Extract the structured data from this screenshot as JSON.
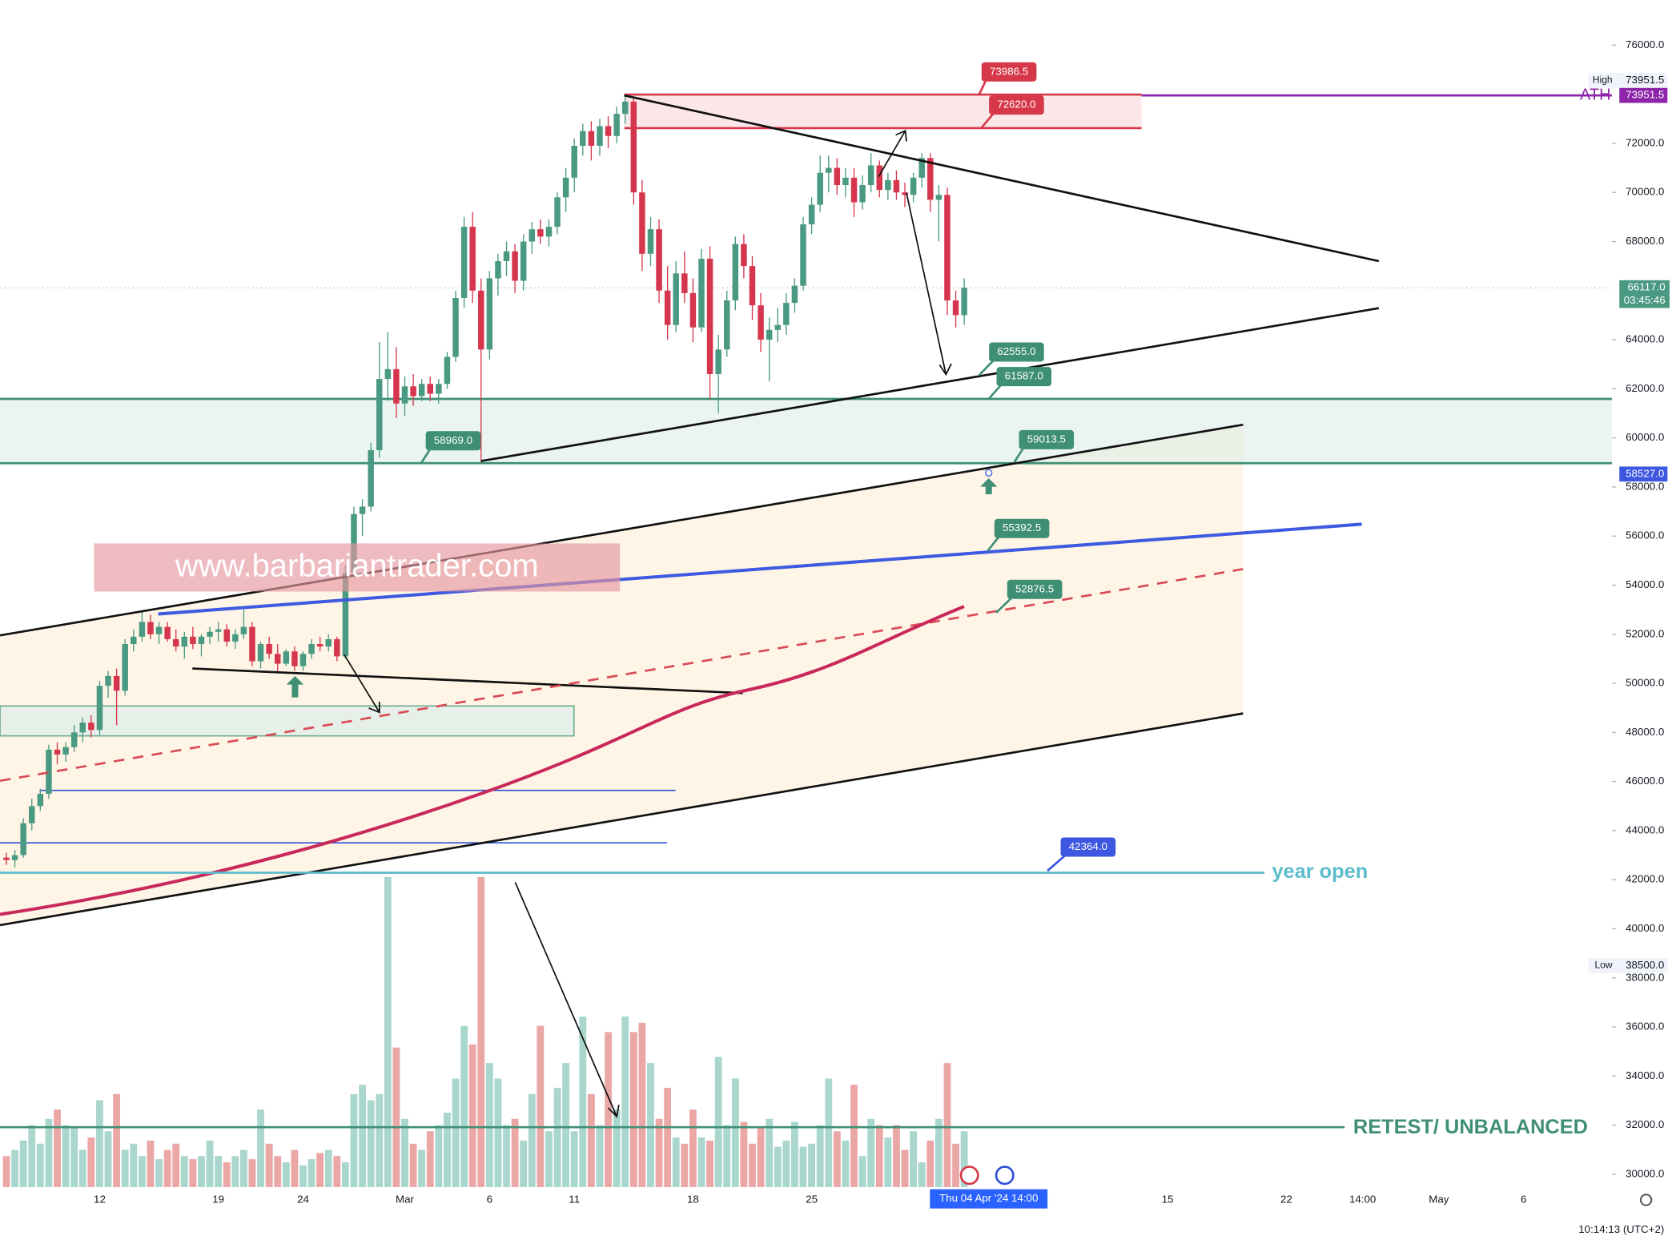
{
  "chart_data": {
    "type": "candlestick",
    "watermark": "www.barbariantrader.com",
    "up_color": "#4a9982",
    "down_color": "#d6364d",
    "volume_up_color": "#a9d6cd",
    "volume_down_color": "#eba6a6",
    "categories": [
      null,
      null,
      null,
      null,
      null,
      null,
      null,
      null,
      null,
      null,
      null,
      "12",
      null,
      null,
      null,
      null,
      null,
      null,
      null,
      null,
      null,
      null,
      null,
      null,
      null,
      "19",
      null,
      null,
      null,
      null,
      null,
      null,
      null,
      null,
      null,
      "24",
      null,
      null,
      null,
      null,
      null,
      null,
      null,
      null,
      null,
      null,
      null,
      "Mar",
      null,
      null,
      null,
      null,
      null,
      null,
      null,
      null,
      null,
      "6",
      null,
      null,
      null,
      null,
      null,
      null,
      null,
      null,
      null,
      "11",
      null,
      null,
      null,
      null,
      null,
      null,
      null,
      null,
      null,
      null,
      null,
      null,
      null,
      "18",
      null,
      null,
      null,
      null,
      null,
      null,
      null,
      null,
      null,
      null,
      null,
      null,
      null,
      "25",
      null,
      null,
      null,
      null,
      null,
      null,
      null,
      null,
      null,
      null,
      null,
      null,
      null,
      null,
      null,
      null,
      null,
      null,
      null,
      null,
      null,
      null,
      null,
      null,
      null,
      null,
      null,
      null,
      null,
      null,
      null,
      null,
      null,
      null,
      null,
      null,
      null,
      null,
      null,
      null,
      null,
      "15",
      null,
      null,
      null,
      null,
      null,
      null,
      null,
      null,
      null,
      null,
      null,
      null,
      null,
      "22",
      null,
      null,
      null,
      null,
      null,
      null,
      null,
      null,
      "14:00",
      null,
      null,
      null,
      null,
      null,
      null,
      null,
      null,
      "May",
      null,
      null,
      null,
      null,
      null,
      null,
      null,
      null,
      null,
      "6"
    ],
    "candles": [
      [
        42900,
        43100,
        42600,
        42800
      ],
      [
        42800,
        43200,
        42500,
        43000
      ],
      [
        43000,
        44500,
        42900,
        44300
      ],
      [
        44300,
        45300,
        44000,
        45000
      ],
      [
        45000,
        45700,
        44800,
        45500
      ],
      [
        45500,
        47500,
        45300,
        47300
      ],
      [
        47300,
        47600,
        46700,
        47100
      ],
      [
        47100,
        47600,
        46800,
        47400
      ],
      [
        47400,
        48300,
        47200,
        48000
      ],
      [
        48000,
        48600,
        47600,
        48400
      ],
      [
        48400,
        48700,
        47800,
        48100
      ],
      [
        48100,
        50100,
        47900,
        49900
      ],
      [
        49900,
        50500,
        49400,
        50300
      ],
      [
        50300,
        50600,
        48300,
        49700
      ],
      [
        49700,
        51800,
        49500,
        51600
      ],
      [
        51600,
        52200,
        51300,
        51900
      ],
      [
        51900,
        52900,
        51700,
        52500
      ],
      [
        52500,
        52800,
        51800,
        52000
      ],
      [
        52000,
        52500,
        51600,
        52300
      ],
      [
        52300,
        52500,
        51700,
        51800
      ],
      [
        51800,
        52200,
        51300,
        51500
      ],
      [
        51500,
        52100,
        51000,
        51900
      ],
      [
        51900,
        52300,
        51400,
        51600
      ],
      [
        51600,
        52000,
        51100,
        51900
      ],
      [
        51900,
        52300,
        51600,
        52100
      ],
      [
        52100,
        52500,
        51700,
        52200
      ],
      [
        52200,
        52400,
        51500,
        51700
      ],
      [
        51700,
        52200,
        51400,
        52000
      ],
      [
        52000,
        53000,
        51800,
        52300
      ],
      [
        52300,
        52500,
        50700,
        50900
      ],
      [
        50900,
        51700,
        50600,
        51600
      ],
      [
        51600,
        51900,
        51000,
        51200
      ],
      [
        51200,
        51600,
        50500,
        50800
      ],
      [
        50800,
        51400,
        50700,
        51300
      ],
      [
        51300,
        51500,
        50500,
        50700
      ],
      [
        50700,
        51300,
        50500,
        51200
      ],
      [
        51200,
        51800,
        51000,
        51600
      ],
      [
        51600,
        51900,
        51300,
        51500
      ],
      [
        51500,
        52000,
        51300,
        51800
      ],
      [
        51800,
        51900,
        50900,
        51100
      ],
      [
        51100,
        54800,
        51000,
        54500
      ],
      [
        54500,
        57200,
        54300,
        56900
      ],
      [
        56900,
        57500,
        56000,
        57200
      ],
      [
        57200,
        59800,
        57000,
        59500
      ],
      [
        59500,
        63900,
        59200,
        62400
      ],
      [
        62400,
        64300,
        61500,
        62800
      ],
      [
        62800,
        63700,
        60800,
        61400
      ],
      [
        61400,
        62500,
        60900,
        62100
      ],
      [
        62100,
        62600,
        61300,
        61700
      ],
      [
        61700,
        62400,
        61500,
        62200
      ],
      [
        62200,
        62500,
        61500,
        61800
      ],
      [
        61800,
        62400,
        61400,
        62200
      ],
      [
        62200,
        63500,
        62000,
        63300
      ],
      [
        63300,
        66000,
        63100,
        65700
      ],
      [
        65700,
        69000,
        65300,
        68600
      ],
      [
        68600,
        69200,
        65500,
        66000
      ],
      [
        66000,
        66500,
        59000,
        63600
      ],
      [
        63600,
        66800,
        63200,
        66500
      ],
      [
        66500,
        67500,
        65800,
        67200
      ],
      [
        67200,
        68000,
        66600,
        67600
      ],
      [
        67600,
        67900,
        65900,
        66400
      ],
      [
        66400,
        68300,
        66000,
        68000
      ],
      [
        68000,
        68800,
        67500,
        68500
      ],
      [
        68500,
        68900,
        67900,
        68200
      ],
      [
        68200,
        68900,
        67800,
        68600
      ],
      [
        68600,
        70000,
        68300,
        69800
      ],
      [
        69800,
        71000,
        69200,
        70600
      ],
      [
        70600,
        72200,
        70000,
        71900
      ],
      [
        71900,
        72800,
        71500,
        72500
      ],
      [
        72500,
        72900,
        71300,
        71900
      ],
      [
        71900,
        73000,
        71500,
        72700
      ],
      [
        72700,
        73100,
        71800,
        72300
      ],
      [
        72300,
        73500,
        72000,
        73200
      ],
      [
        73200,
        73950,
        72800,
        73700
      ],
      [
        73700,
        73900,
        69500,
        70000
      ],
      [
        70000,
        70500,
        66800,
        67500
      ],
      [
        67500,
        69000,
        67000,
        68500
      ],
      [
        68500,
        68900,
        65500,
        66000
      ],
      [
        66000,
        67000,
        64000,
        64600
      ],
      [
        64600,
        67200,
        64300,
        66700
      ],
      [
        66700,
        67600,
        65500,
        65900
      ],
      [
        65900,
        66500,
        63900,
        64500
      ],
      [
        64500,
        67700,
        64300,
        67300
      ],
      [
        67300,
        67800,
        61600,
        62600
      ],
      [
        62600,
        64200,
        61000,
        63600
      ],
      [
        63600,
        66000,
        63300,
        65600
      ],
      [
        65600,
        68200,
        65200,
        67900
      ],
      [
        67900,
        68300,
        66500,
        67000
      ],
      [
        67000,
        67400,
        64800,
        65400
      ],
      [
        65400,
        65900,
        63500,
        64000
      ],
      [
        64000,
        64900,
        62300,
        64400
      ],
      [
        64400,
        65300,
        63900,
        64600
      ],
      [
        64600,
        65900,
        64200,
        65500
      ],
      [
        65500,
        66500,
        65100,
        66200
      ],
      [
        66200,
        69000,
        66000,
        68700
      ],
      [
        68700,
        69800,
        68300,
        69500
      ],
      [
        69500,
        71500,
        69200,
        70800
      ],
      [
        70800,
        71500,
        70000,
        71000
      ],
      [
        71000,
        71400,
        69900,
        70300
      ],
      [
        70300,
        71000,
        69800,
        70600
      ],
      [
        70600,
        71000,
        69000,
        69600
      ],
      [
        69600,
        70700,
        69300,
        70300
      ],
      [
        70300,
        71600,
        70000,
        71100
      ],
      [
        71100,
        71300,
        69800,
        70100
      ],
      [
        70100,
        70800,
        69700,
        70500
      ],
      [
        70500,
        70900,
        69700,
        70000
      ],
      [
        70000,
        70400,
        69400,
        69900
      ],
      [
        69900,
        70800,
        69600,
        70600
      ],
      [
        70600,
        71600,
        70200,
        71400
      ],
      [
        71400,
        71600,
        69200,
        69700
      ],
      [
        69700,
        70300,
        68000,
        69900
      ],
      [
        69900,
        70200,
        65000,
        65600
      ],
      [
        65600,
        66000,
        64500,
        65000
      ],
      [
        65000,
        66500,
        64600,
        66117
      ],
      null,
      null,
      null,
      null,
      null,
      null,
      null,
      null,
      null,
      null,
      null,
      null,
      null,
      null,
      null,
      null,
      null,
      null,
      null,
      null,
      null,
      null,
      null,
      null,
      null,
      null,
      null,
      null,
      null,
      null,
      null,
      null,
      null,
      null,
      null,
      null,
      null,
      null,
      null,
      null,
      null,
      null,
      null,
      null,
      null,
      null,
      null,
      null,
      null,
      null,
      null,
      null,
      null,
      null,
      null,
      null,
      null,
      null,
      null,
      null,
      null,
      null,
      null,
      null,
      null,
      null
    ],
    "volume": [
      10,
      12,
      15,
      20,
      14,
      22,
      25,
      20,
      19,
      12,
      16,
      28,
      18,
      30,
      12,
      14,
      10,
      15,
      9,
      12,
      14,
      10,
      9,
      10,
      15,
      10,
      8,
      10,
      12,
      9,
      25,
      14,
      10,
      8,
      12,
      7,
      9,
      11,
      12,
      10,
      8,
      30,
      33,
      28,
      30,
      100,
      45,
      22,
      14,
      12,
      18,
      20,
      24,
      35,
      52,
      46,
      100,
      40,
      35,
      20,
      22,
      15,
      30,
      52,
      18,
      32,
      40,
      18,
      55,
      30,
      20,
      50,
      25,
      55,
      50,
      53,
      40,
      22,
      32,
      16,
      14,
      25,
      16,
      15,
      42,
      20,
      35,
      21,
      14,
      19,
      22,
      13,
      15,
      21,
      13,
      14,
      20,
      35,
      18,
      15,
      33,
      10,
      22,
      20,
      16,
      20,
      12,
      18,
      8,
      15,
      22,
      40,
      14,
      18,
      null,
      null,
      null,
      null,
      null,
      null,
      null,
      null,
      null,
      null,
      null,
      null,
      null,
      null,
      null,
      null,
      null,
      null,
      null,
      null,
      null,
      null,
      null,
      null,
      null,
      null,
      null,
      null,
      null,
      null,
      null,
      null,
      null,
      null,
      null,
      null,
      null,
      null,
      null,
      null,
      null,
      null,
      null,
      null,
      null,
      null,
      null,
      null,
      null,
      null,
      null,
      null,
      null,
      null,
      null,
      null,
      null,
      null,
      null,
      null,
      null,
      null,
      null,
      null,
      null,
      null
    ],
    "volume_ylim": [
      0,
      100
    ],
    "ylim": [
      30000,
      76000
    ],
    "yticks": [
      {
        "value": 76000,
        "label": "76000.0"
      },
      {
        "value": 72000,
        "label": "72000.0"
      },
      {
        "value": 70000,
        "label": "70000.0"
      },
      {
        "value": 68000,
        "label": "68000.0"
      },
      {
        "value": 64000,
        "label": "64000.0"
      },
      {
        "value": 62000,
        "label": "62000.0"
      },
      {
        "value": 60000,
        "label": "60000.0"
      },
      {
        "value": 58000,
        "label": "58000.0"
      },
      {
        "value": 56000,
        "label": "56000.0"
      },
      {
        "value": 54000,
        "label": "54000.0"
      },
      {
        "value": 52000,
        "label": "52000.0"
      },
      {
        "value": 50000,
        "label": "50000.0"
      },
      {
        "value": 48000,
        "label": "48000.0"
      },
      {
        "value": 46000,
        "label": "46000.0"
      },
      {
        "value": 44000,
        "label": "44000.0"
      },
      {
        "value": 42000,
        "label": "42000.0"
      },
      {
        "value": 40000,
        "label": "40000.0"
      },
      {
        "value": 38000,
        "label": "38000.0"
      },
      {
        "value": 36000,
        "label": "36000.0"
      },
      {
        "value": 34000,
        "label": "34000.0"
      },
      {
        "value": 32000,
        "label": "32000.0"
      },
      {
        "value": 30000,
        "label": "30000.0"
      }
    ],
    "annotations": [
      {
        "value": 73986.5,
        "label": "73986.5",
        "color": "#d63849"
      },
      {
        "value": 72620,
        "label": "72620.0",
        "color": "#d63849"
      },
      {
        "value": 62555,
        "label": "62555.0",
        "color": "#3f8f74"
      },
      {
        "value": 61587,
        "label": "61587.0",
        "color": "#3f8f74"
      },
      {
        "value": 58969,
        "label": "58969.0",
        "color": "#3f8f74"
      },
      {
        "value": 59013.5,
        "label": "59013.5",
        "color": "#3f8f74"
      },
      {
        "value": 55392.5,
        "label": "55392.5",
        "color": "#3f8f74"
      },
      {
        "value": 52876.5,
        "label": "52876.5",
        "color": "#3f8f74"
      },
      {
        "value": 42364,
        "label": "42364.0",
        "color": "#3d57e0"
      }
    ],
    "high": {
      "name": "High",
      "value": 73951.5
    },
    "ath": {
      "name": "ATH",
      "value": 73951.5,
      "color": "#8e24aa"
    },
    "last_price": {
      "value": 66117,
      "value_label": "66117.0",
      "countdown": "03:45:46"
    },
    "level": {
      "value": 58527,
      "value_label": "58527.0"
    },
    "low": {
      "name": "Low",
      "value": 38500,
      "value_label": "38500.0"
    },
    "year_open": "year open",
    "retest": "RETEST/ UNBALANCED",
    "crosshair": "Thu 04 Apr '24   14:00",
    "clock": "10:14:13 (UTC+2)"
  }
}
